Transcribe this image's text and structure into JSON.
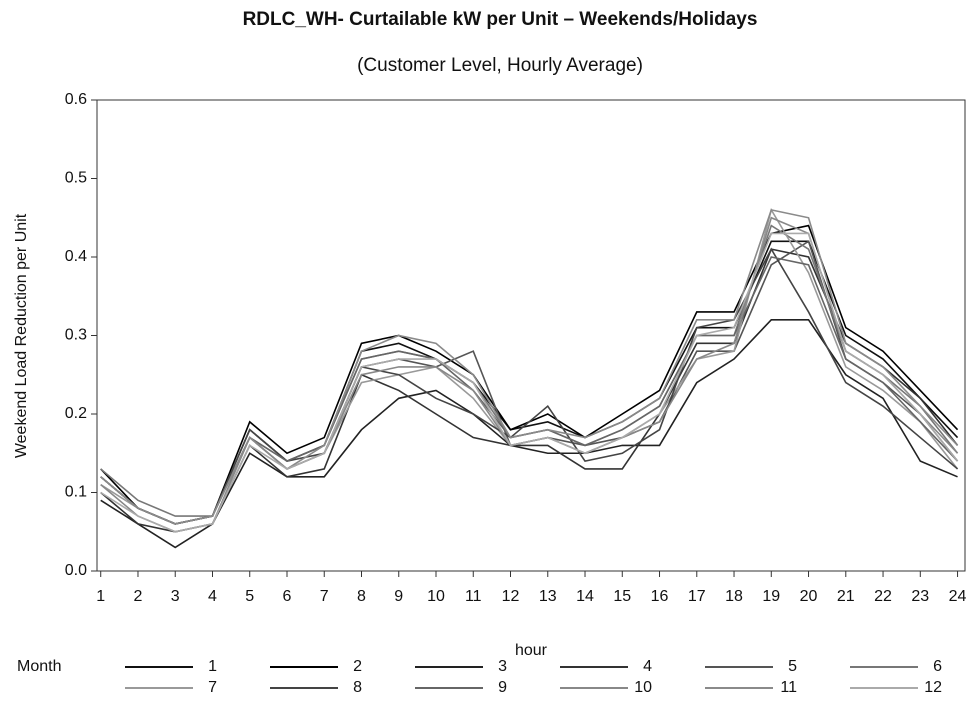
{
  "chart_data": {
    "type": "line",
    "title": "RDLC_WH- Curtailable kW per Unit – Weekends/Holidays",
    "subtitle": "(Customer Level, Hourly Average)",
    "x_label": "hour",
    "y_label": "Weekend Load Reduction per Unit",
    "legend_title": "Month",
    "x": [
      1,
      2,
      3,
      4,
      5,
      6,
      7,
      8,
      9,
      10,
      11,
      12,
      13,
      14,
      15,
      16,
      17,
      18,
      19,
      20,
      21,
      22,
      23,
      24
    ],
    "xlim": [
      0.9,
      24.2
    ],
    "xticks": [
      1,
      2,
      3,
      4,
      5,
      6,
      7,
      8,
      9,
      10,
      11,
      12,
      13,
      14,
      15,
      16,
      17,
      18,
      19,
      20,
      21,
      22,
      23,
      24
    ],
    "ylim": [
      0,
      0.6
    ],
    "yticks": [
      {
        "value": 0,
        "label": "0.0"
      },
      0.1,
      0.2,
      0.3,
      0.4,
      0.5,
      0.6
    ],
    "series": [
      {
        "name": "1",
        "color": "#111111",
        "values": [
          0.12,
          0.08,
          0.06,
          0.07,
          0.18,
          0.14,
          0.16,
          0.28,
          0.29,
          0.27,
          0.24,
          0.18,
          0.19,
          0.17,
          0.19,
          0.22,
          0.31,
          0.31,
          0.42,
          0.42,
          0.3,
          0.27,
          0.22,
          0.17
        ]
      },
      {
        "name": "2",
        "color": "#000000",
        "values": [
          0.13,
          0.08,
          0.06,
          0.07,
          0.19,
          0.15,
          0.17,
          0.29,
          0.3,
          0.28,
          0.25,
          0.18,
          0.2,
          0.17,
          0.2,
          0.23,
          0.33,
          0.33,
          0.43,
          0.44,
          0.31,
          0.28,
          0.23,
          0.18
        ]
      },
      {
        "name": "3",
        "color": "#222222",
        "values": [
          0.09,
          0.06,
          0.03,
          0.06,
          0.15,
          0.12,
          0.12,
          0.18,
          0.22,
          0.23,
          0.2,
          0.16,
          0.15,
          0.15,
          0.16,
          0.16,
          0.24,
          0.27,
          0.32,
          0.32,
          0.25,
          0.22,
          0.14,
          0.12
        ]
      },
      {
        "name": "4",
        "color": "#333333",
        "values": [
          0.1,
          0.06,
          0.05,
          0.06,
          0.16,
          0.12,
          0.13,
          0.25,
          0.23,
          0.2,
          0.17,
          0.16,
          0.16,
          0.13,
          0.13,
          0.2,
          0.29,
          0.29,
          0.41,
          0.4,
          0.29,
          0.26,
          0.22,
          0.16
        ]
      },
      {
        "name": "5",
        "color": "#555555",
        "values": [
          0.12,
          0.08,
          0.06,
          0.07,
          0.17,
          0.13,
          0.15,
          0.26,
          0.27,
          0.26,
          0.28,
          0.16,
          0.17,
          0.16,
          0.17,
          0.19,
          0.28,
          0.28,
          0.39,
          0.42,
          0.27,
          0.24,
          0.2,
          0.14
        ]
      },
      {
        "name": "6",
        "color": "#777777",
        "values": [
          0.13,
          0.09,
          0.07,
          0.07,
          0.18,
          0.14,
          0.16,
          0.27,
          0.28,
          0.27,
          0.24,
          0.17,
          0.18,
          0.16,
          0.18,
          0.21,
          0.3,
          0.3,
          0.44,
          0.41,
          0.28,
          0.25,
          0.21,
          0.15
        ]
      },
      {
        "name": "7",
        "color": "#999999",
        "values": [
          0.11,
          0.08,
          0.06,
          0.07,
          0.17,
          0.13,
          0.15,
          0.24,
          0.25,
          0.26,
          0.22,
          0.16,
          0.17,
          0.15,
          0.17,
          0.2,
          0.27,
          0.28,
          0.46,
          0.38,
          0.26,
          0.23,
          0.19,
          0.13
        ]
      },
      {
        "name": "8",
        "color": "#444444",
        "values": [
          0.12,
          0.08,
          0.06,
          0.07,
          0.18,
          0.14,
          0.15,
          0.26,
          0.25,
          0.22,
          0.2,
          0.17,
          0.21,
          0.14,
          0.15,
          0.18,
          0.31,
          0.32,
          0.41,
          0.33,
          0.24,
          0.21,
          0.17,
          0.13
        ]
      },
      {
        "name": "9",
        "color": "#666666",
        "values": [
          0.12,
          0.08,
          0.06,
          0.07,
          0.17,
          0.14,
          0.16,
          0.27,
          0.28,
          0.27,
          0.23,
          0.17,
          0.18,
          0.16,
          0.18,
          0.21,
          0.3,
          0.3,
          0.4,
          0.39,
          0.27,
          0.24,
          0.19,
          0.14
        ]
      },
      {
        "name": "10",
        "color": "#888888",
        "values": [
          0.11,
          0.07,
          0.05,
          0.06,
          0.17,
          0.13,
          0.15,
          0.25,
          0.26,
          0.26,
          0.23,
          0.16,
          0.17,
          0.15,
          0.17,
          0.19,
          0.27,
          0.29,
          0.45,
          0.43,
          0.28,
          0.25,
          0.2,
          0.15
        ]
      },
      {
        "name": "11",
        "color": "#8a8a8a",
        "values": [
          0.12,
          0.08,
          0.06,
          0.07,
          0.17,
          0.13,
          0.16,
          0.28,
          0.3,
          0.29,
          0.25,
          0.17,
          0.18,
          0.17,
          0.19,
          0.22,
          0.32,
          0.32,
          0.46,
          0.45,
          0.29,
          0.26,
          0.21,
          0.16
        ]
      },
      {
        "name": "12",
        "color": "#aaaaaa",
        "values": [
          0.1,
          0.07,
          0.05,
          0.06,
          0.16,
          0.13,
          0.15,
          0.26,
          0.27,
          0.27,
          0.24,
          0.16,
          0.17,
          0.15,
          0.17,
          0.2,
          0.3,
          0.31,
          0.43,
          0.43,
          0.28,
          0.25,
          0.2,
          0.14
        ]
      }
    ]
  }
}
